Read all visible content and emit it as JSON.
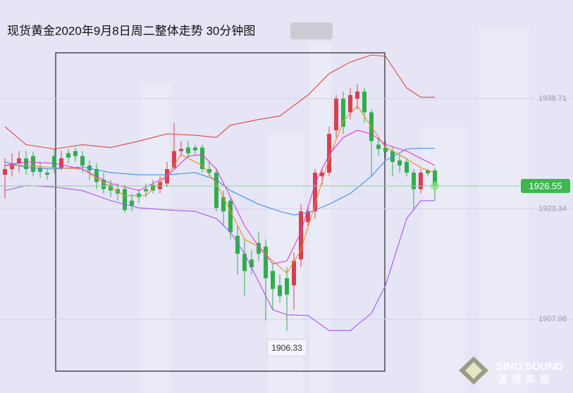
{
  "chart_data": {
    "type": "candlestick",
    "title": "现货黄金2020年9月8日周二整体走势 30分钟图",
    "xlim": [
      -0.7,
      80.6
    ],
    "ylim": [
      1897.7,
      1952.45
    ],
    "yticks": [
      1938.71,
      1923.34,
      1907.98
    ],
    "grid": true,
    "up_color": "#d5414e",
    "down_color": "#2eaf4c",
    "candles": {
      "open": [
        1928.1,
        1928.9,
        1929.7,
        1930.4,
        1930.7,
        1929.1,
        1928.4,
        1930.7,
        1929.1,
        1931.1,
        1931.4,
        1930.7,
        1929.4,
        1928.9,
        1927.4,
        1926.7,
        1926.1,
        1926.1,
        1924.5,
        1925.5,
        1926.1,
        1926.7,
        1926.1,
        1926.9,
        1929.1,
        1931.4,
        1931.9,
        1931.9,
        1931.9,
        1928.9,
        1928.4,
        1925.0,
        1924.5,
        1919.6,
        1917.1,
        1916.3,
        1918.6,
        1918.1,
        1914.7,
        1912.7,
        1913.7,
        1912.7,
        1916.3,
        1921.5,
        1923.0,
        1927.9,
        1928.4,
        1934.3,
        1938.7,
        1936.8,
        1938.7,
        1939.7,
        1936.8,
        1932.3,
        1931.9,
        1931.4,
        1930.1,
        1929.9,
        1928.4,
        1926.1,
        1928.7,
        1928.7
      ],
      "high": [
        1930.4,
        1931.1,
        1931.4,
        1931.4,
        1931.3,
        1929.9,
        1928.9,
        1931.7,
        1931.4,
        1931.7,
        1931.9,
        1931.4,
        1930.1,
        1929.7,
        1928.4,
        1927.4,
        1926.9,
        1926.7,
        1925.5,
        1926.1,
        1926.9,
        1927.4,
        1927.9,
        1929.9,
        1935.3,
        1932.8,
        1932.8,
        1932.3,
        1932.3,
        1929.9,
        1928.9,
        1925.9,
        1925.0,
        1921.0,
        1919.1,
        1917.6,
        1920.1,
        1919.1,
        1915.7,
        1914.2,
        1915.2,
        1917.3,
        1924.0,
        1923.8,
        1928.9,
        1928.9,
        1934.8,
        1939.2,
        1939.7,
        1940.2,
        1940.7,
        1940.2,
        1937.2,
        1933.3,
        1932.8,
        1931.9,
        1930.9,
        1930.4,
        1928.9,
        1928.9,
        1928.9,
        1929.1
      ],
      "low": [
        1924.8,
        1927.9,
        1928.4,
        1928.1,
        1927.9,
        1927.7,
        1927.4,
        1928.3,
        1928.7,
        1929.7,
        1929.9,
        1928.4,
        1927.4,
        1926.1,
        1925.5,
        1925.0,
        1924.5,
        1922.8,
        1923.0,
        1924.2,
        1925.0,
        1925.5,
        1925.5,
        1926.4,
        1928.9,
        1930.7,
        1930.4,
        1930.9,
        1928.4,
        1927.9,
        1923.0,
        1921.0,
        1919.1,
        1914.2,
        1911.2,
        1914.2,
        1916.1,
        1907.8,
        1909.3,
        1910.3,
        1906.33,
        1909.3,
        1915.2,
        1921.0,
        1922.0,
        1926.7,
        1927.9,
        1933.3,
        1933.8,
        1935.8,
        1937.2,
        1935.3,
        1927.9,
        1930.7,
        1930.4,
        1927.9,
        1928.4,
        1927.9,
        1923.2,
        1925.5,
        1927.9,
        1924.5
      ],
      "close": [
        1928.9,
        1929.7,
        1930.4,
        1928.9,
        1928.5,
        1928.5,
        1928.1,
        1929.1,
        1930.4,
        1930.5,
        1930.7,
        1929.4,
        1928.7,
        1927.1,
        1926.1,
        1925.9,
        1925.5,
        1923.2,
        1923.8,
        1925.0,
        1925.8,
        1925.9,
        1927.1,
        1928.9,
        1931.4,
        1931.7,
        1931.1,
        1931.5,
        1928.9,
        1928.4,
        1923.5,
        1923.0,
        1920.1,
        1917.1,
        1914.7,
        1915.2,
        1917.1,
        1913.7,
        1912.2,
        1911.2,
        1911.4,
        1916.1,
        1923.0,
        1923.0,
        1928.4,
        1928.4,
        1933.8,
        1938.7,
        1934.8,
        1939.2,
        1939.7,
        1936.8,
        1932.8,
        1931.7,
        1931.3,
        1929.9,
        1929.4,
        1928.4,
        1926.1,
        1928.4,
        1928.3,
        1926.55
      ]
    },
    "series": [
      {
        "color": "#e0483c",
        "x": [
          0,
          3,
          7,
          11,
          15,
          19,
          23,
          27,
          30,
          32,
          36,
          39,
          43,
          46,
          49,
          52,
          54,
          57,
          59,
          61
        ],
        "values": [
          1934.8,
          1932.3,
          1931.7,
          1932.3,
          1931.9,
          1932.8,
          1933.8,
          1933.6,
          1933.3,
          1935.0,
          1935.8,
          1936.3,
          1939.2,
          1942.2,
          1943.8,
          1944.8,
          1944.6,
          1940.2,
          1938.9,
          1938.9
        ]
      },
      {
        "color": "#3c8ee8",
        "x": [
          0,
          3,
          7,
          11,
          15,
          19,
          23,
          27,
          30,
          32,
          36,
          39,
          41,
          43,
          46,
          49,
          52,
          54,
          57,
          59,
          61
        ],
        "values": [
          1929.9,
          1929.1,
          1928.9,
          1929.2,
          1928.4,
          1928.1,
          1928.1,
          1928.4,
          1927.4,
          1925.9,
          1924.0,
          1923.0,
          1922.5,
          1922.8,
          1924.0,
          1925.5,
          1927.9,
          1930.1,
          1931.7,
          1931.8,
          1931.8
        ]
      },
      {
        "color": "#a855f0",
        "x": [
          0,
          3,
          7,
          11,
          15,
          19,
          23,
          27,
          30,
          32,
          34,
          36,
          38,
          40,
          43,
          46,
          49,
          52,
          54,
          57,
          59,
          61
        ],
        "values": [
          1925.9,
          1926.6,
          1926.4,
          1925.9,
          1924.5,
          1923.5,
          1923.2,
          1923.0,
          1922.0,
          1920.1,
          1917.1,
          1913.2,
          1909.3,
          1908.6,
          1908.5,
          1906.4,
          1906.4,
          1908.8,
          1912.7,
          1922.0,
          1924.5,
          1924.5
        ]
      },
      {
        "color": "#f08a24",
        "x": [
          0,
          3,
          7,
          11,
          15,
          17,
          20,
          23,
          25,
          28,
          30,
          32,
          34,
          36,
          38,
          40,
          42,
          44,
          46,
          48,
          50,
          52,
          54,
          56,
          59,
          61
        ],
        "values": [
          1929.4,
          1929.4,
          1929.1,
          1928.9,
          1926.4,
          1925.2,
          1925.2,
          1927.9,
          1930.9,
          1929.4,
          1926.9,
          1923.0,
          1919.1,
          1918.1,
          1916.1,
          1914.4,
          1917.6,
          1924.0,
          1930.4,
          1935.6,
          1937.7,
          1934.8,
          1931.9,
          1930.9,
          1929.1,
          1928.4
        ]
      },
      {
        "color": "#e636d8",
        "x": [
          0,
          3,
          7,
          11,
          15,
          19,
          23,
          26,
          28,
          30,
          32,
          34,
          36,
          38,
          40,
          42,
          44,
          46,
          48,
          50,
          52,
          54,
          57,
          59,
          61
        ],
        "values": [
          1929.4,
          1929.9,
          1929.7,
          1928.9,
          1926.9,
          1925.9,
          1927.9,
          1930.7,
          1930.9,
          1928.9,
          1925.0,
          1921.0,
          1918.1,
          1915.7,
          1916.1,
          1920.1,
          1926.9,
          1930.9,
          1933.3,
          1934.3,
          1933.8,
          1932.3,
          1931.4,
          1930.4,
          1929.4
        ]
      }
    ],
    "last_price": 1926.55,
    "low_label": 1906.33
  },
  "logo": {
    "name": "SINO SOUND",
    "name_cn": "漢聲集團"
  }
}
